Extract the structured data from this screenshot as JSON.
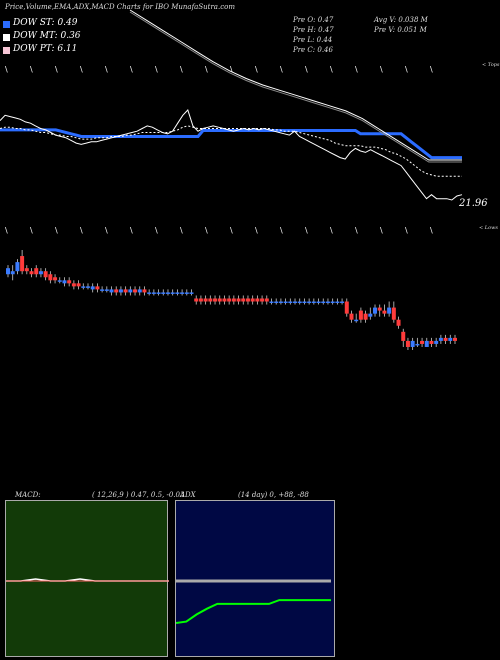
{
  "header": {
    "title": "Price,Volume,EMA,ADX,MACD Charts for IBO MunafaSutra.com"
  },
  "legend": [
    {
      "label": "DOW ST: 0.49",
      "color": "#2b6cff"
    },
    {
      "label": "DOW MT: 0.36",
      "color": "#ffffff"
    },
    {
      "label": "DOW PT: 6.11",
      "color": "#f7c6d6"
    }
  ],
  "info": {
    "col1": [
      "Pre  O: 0.47",
      "Pre  H: 0.47",
      "Pre  L: 0.44",
      "Pre  C: 0.46"
    ],
    "col2": [
      "Avg V: 0.038  M",
      "Pre  V: 0.051 M"
    ]
  },
  "price_label": "21.96",
  "edge_labels": {
    "top": "< Tops",
    "bottom": "< Lows"
  },
  "chart_data": [
    {
      "type": "line",
      "panel": "price-ema",
      "title": "Price,Volume,EMA,ADX,MACD Charts for IBO MunafaSutra.com",
      "x": [
        0,
        1,
        2,
        3,
        4,
        5,
        6,
        7,
        8,
        9,
        10,
        11,
        12,
        13,
        14,
        15,
        16,
        17,
        18,
        19,
        20,
        21,
        22,
        23,
        24,
        25,
        26,
        27,
        28,
        29,
        30,
        31,
        32,
        33,
        34,
        35,
        36,
        37,
        38,
        39,
        40,
        41,
        42,
        43,
        44,
        45,
        46,
        47,
        48,
        49,
        50,
        51,
        52,
        53,
        54,
        55,
        56,
        57,
        58,
        59,
        60,
        61,
        62,
        63,
        64,
        65,
        66,
        67,
        68,
        69,
        70,
        71,
        72,
        73,
        74,
        75,
        76,
        77,
        78,
        79,
        80,
        81,
        82,
        83,
        84,
        85,
        86,
        87,
        88,
        89,
        90,
        91
      ],
      "series": [
        {
          "name": "",
          "color": "#2b6cff",
          "values": [
            0.47,
            0.47,
            0.47,
            0.47,
            0.47,
            0.47,
            0.47,
            0.47,
            0.47,
            0.47,
            0.47,
            0.47,
            0.46,
            0.45,
            0.44,
            0.43,
            0.42,
            0.42,
            0.42,
            0.42,
            0.42,
            0.42,
            0.42,
            0.42,
            0.42,
            0.42,
            0.42,
            0.42,
            0.42,
            0.42,
            0.42,
            0.42,
            0.42,
            0.42,
            0.42,
            0.42,
            0.42,
            0.42,
            0.42,
            0.42,
            0.465,
            0.465,
            0.465,
            0.465,
            0.465,
            0.465,
            0.465,
            0.465,
            0.465,
            0.465,
            0.465,
            0.465,
            0.465,
            0.465,
            0.465,
            0.465,
            0.465,
            0.465,
            0.465,
            0.465,
            0.465,
            0.465,
            0.465,
            0.465,
            0.465,
            0.465,
            0.465,
            0.465,
            0.465,
            0.465,
            0.465,
            0.44,
            0.44,
            0.44,
            0.44,
            0.44,
            0.44,
            0.44,
            0.44,
            0.44,
            0.41,
            0.38,
            0.35,
            0.32,
            0.29,
            0.26,
            0.26,
            0.26,
            0.26,
            0.26,
            0.26,
            0.26
          ]
        },
        {
          "name": "",
          "color": "#ffffff",
          "values": [
            0.54,
            0.58,
            0.57,
            0.56,
            0.55,
            0.53,
            0.52,
            0.5,
            0.48,
            0.47,
            0.45,
            0.43,
            0.42,
            0.41,
            0.39,
            0.37,
            0.36,
            0.37,
            0.38,
            0.38,
            0.39,
            0.4,
            0.41,
            0.42,
            0.43,
            0.44,
            0.45,
            0.46,
            0.48,
            0.5,
            0.49,
            0.47,
            0.45,
            0.44,
            0.46,
            0.52,
            0.58,
            0.62,
            0.5,
            0.46,
            0.48,
            0.49,
            0.5,
            0.49,
            0.48,
            0.47,
            0.46,
            0.47,
            0.48,
            0.47,
            0.48,
            0.47,
            0.48,
            0.47,
            0.46,
            0.45,
            0.44,
            0.43,
            0.46,
            0.42,
            0.4,
            0.38,
            0.36,
            0.34,
            0.32,
            0.3,
            0.28,
            0.26,
            0.25,
            0.3,
            0.33,
            0.31,
            0.3,
            0.32,
            0.3,
            0.28,
            0.26,
            0.24,
            0.22,
            0.2,
            0.15,
            0.1,
            0.05,
            0.0,
            -0.05,
            -0.02,
            -0.05,
            -0.05,
            -0.05,
            -0.06,
            -0.03,
            -0.02
          ]
        },
        {
          "name": "",
          "color": "#ffffff",
          "dash": true,
          "values": [
            0.48,
            0.49,
            0.49,
            0.48,
            0.48,
            0.47,
            0.47,
            0.46,
            0.45,
            0.45,
            0.44,
            0.43,
            0.43,
            0.42,
            0.42,
            0.41,
            0.4,
            0.4,
            0.4,
            0.41,
            0.41,
            0.41,
            0.42,
            0.42,
            0.42,
            0.43,
            0.43,
            0.44,
            0.45,
            0.45,
            0.45,
            0.45,
            0.45,
            0.45,
            0.46,
            0.47,
            0.49,
            0.5,
            0.49,
            0.48,
            0.48,
            0.48,
            0.48,
            0.48,
            0.48,
            0.48,
            0.48,
            0.48,
            0.48,
            0.48,
            0.48,
            0.48,
            0.48,
            0.48,
            0.47,
            0.47,
            0.46,
            0.46,
            0.46,
            0.45,
            0.44,
            0.43,
            0.42,
            0.41,
            0.4,
            0.39,
            0.37,
            0.36,
            0.35,
            0.35,
            0.35,
            0.35,
            0.34,
            0.34,
            0.34,
            0.33,
            0.32,
            0.3,
            0.29,
            0.27,
            0.25,
            0.22,
            0.19,
            0.16,
            0.14,
            0.13,
            0.12,
            0.12,
            0.12,
            0.12,
            0.12,
            0.12
          ]
        }
      ]
    },
    {
      "type": "line",
      "panel": "top-line",
      "x": [
        0,
        1,
        2,
        3,
        4,
        5,
        6,
        7,
        8,
        9,
        10,
        11,
        12,
        13,
        14,
        15,
        16,
        17,
        18,
        19,
        20
      ],
      "series": [
        {
          "name": "",
          "color": "#ffffff",
          "values": [
            1.5,
            1.42,
            1.34,
            1.26,
            1.18,
            1.1,
            1.03,
            0.97,
            0.92,
            0.88,
            0.84,
            0.8,
            0.76,
            0.72,
            0.66,
            0.58,
            0.5,
            0.42,
            0.34,
            0.34,
            0.34
          ]
        }
      ]
    },
    {
      "type": "candlestick",
      "panel": "price-candles",
      "candles": [
        {
          "o": 0.46,
          "c": 0.48,
          "h": 0.49,
          "l": 0.45
        },
        {
          "o": 0.46,
          "c": 0.47,
          "h": 0.49,
          "l": 0.44
        },
        {
          "o": 0.47,
          "c": 0.5,
          "h": 0.51,
          "l": 0.46
        },
        {
          "o": 0.52,
          "c": 0.47,
          "h": 0.54,
          "l": 0.46
        },
        {
          "o": 0.48,
          "c": 0.47,
          "h": 0.49,
          "l": 0.46
        },
        {
          "o": 0.47,
          "c": 0.46,
          "h": 0.48,
          "l": 0.45
        },
        {
          "o": 0.48,
          "c": 0.46,
          "h": 0.49,
          "l": 0.45
        },
        {
          "o": 0.46,
          "c": 0.47,
          "h": 0.48,
          "l": 0.45
        },
        {
          "o": 0.47,
          "c": 0.45,
          "h": 0.48,
          "l": 0.44
        },
        {
          "o": 0.46,
          "c": 0.44,
          "h": 0.47,
          "l": 0.43
        },
        {
          "o": 0.45,
          "c": 0.44,
          "h": 0.46,
          "l": 0.43
        },
        {
          "o": 0.44,
          "c": 0.44,
          "h": 0.45,
          "l": 0.43
        },
        {
          "o": 0.43,
          "c": 0.44,
          "h": 0.45,
          "l": 0.42
        },
        {
          "o": 0.44,
          "c": 0.43,
          "h": 0.45,
          "l": 0.42
        },
        {
          "o": 0.43,
          "c": 0.42,
          "h": 0.44,
          "l": 0.41
        },
        {
          "o": 0.43,
          "c": 0.42,
          "h": 0.44,
          "l": 0.41
        },
        {
          "o": 0.42,
          "c": 0.42,
          "h": 0.43,
          "l": 0.41
        },
        {
          "o": 0.42,
          "c": 0.42,
          "h": 0.43,
          "l": 0.41
        },
        {
          "o": 0.41,
          "c": 0.42,
          "h": 0.43,
          "l": 0.4
        },
        {
          "o": 0.42,
          "c": 0.41,
          "h": 0.43,
          "l": 0.4
        },
        {
          "o": 0.41,
          "c": 0.41,
          "h": 0.42,
          "l": 0.4
        },
        {
          "o": 0.41,
          "c": 0.41,
          "h": 0.42,
          "l": 0.4
        },
        {
          "o": 0.4,
          "c": 0.41,
          "h": 0.42,
          "l": 0.39
        },
        {
          "o": 0.41,
          "c": 0.4,
          "h": 0.42,
          "l": 0.39
        },
        {
          "o": 0.4,
          "c": 0.41,
          "h": 0.42,
          "l": 0.39
        },
        {
          "o": 0.41,
          "c": 0.4,
          "h": 0.42,
          "l": 0.39
        },
        {
          "o": 0.4,
          "c": 0.41,
          "h": 0.42,
          "l": 0.39
        },
        {
          "o": 0.41,
          "c": 0.4,
          "h": 0.42,
          "l": 0.39
        },
        {
          "o": 0.4,
          "c": 0.41,
          "h": 0.42,
          "l": 0.39
        },
        {
          "o": 0.41,
          "c": 0.4,
          "h": 0.42,
          "l": 0.39
        },
        {
          "o": 0.4,
          "c": 0.4,
          "h": 0.41,
          "l": 0.39
        },
        {
          "o": 0.4,
          "c": 0.4,
          "h": 0.41,
          "l": 0.39
        },
        {
          "o": 0.4,
          "c": 0.4,
          "h": 0.41,
          "l": 0.39
        },
        {
          "o": 0.4,
          "c": 0.4,
          "h": 0.41,
          "l": 0.39
        },
        {
          "o": 0.4,
          "c": 0.4,
          "h": 0.41,
          "l": 0.39
        },
        {
          "o": 0.4,
          "c": 0.4,
          "h": 0.41,
          "l": 0.39
        },
        {
          "o": 0.4,
          "c": 0.4,
          "h": 0.41,
          "l": 0.39
        },
        {
          "o": 0.4,
          "c": 0.4,
          "h": 0.41,
          "l": 0.39
        },
        {
          "o": 0.4,
          "c": 0.4,
          "h": 0.41,
          "l": 0.39
        },
        {
          "o": 0.4,
          "c": 0.4,
          "h": 0.41,
          "l": 0.39
        },
        {
          "o": 0.38,
          "c": 0.37,
          "h": 0.39,
          "l": 0.36
        },
        {
          "o": 0.38,
          "c": 0.37,
          "h": 0.39,
          "l": 0.36
        },
        {
          "o": 0.38,
          "c": 0.37,
          "h": 0.39,
          "l": 0.36
        },
        {
          "o": 0.38,
          "c": 0.37,
          "h": 0.39,
          "l": 0.36
        },
        {
          "o": 0.38,
          "c": 0.37,
          "h": 0.39,
          "l": 0.36
        },
        {
          "o": 0.38,
          "c": 0.37,
          "h": 0.39,
          "l": 0.36
        },
        {
          "o": 0.38,
          "c": 0.37,
          "h": 0.39,
          "l": 0.36
        },
        {
          "o": 0.38,
          "c": 0.37,
          "h": 0.39,
          "l": 0.36
        },
        {
          "o": 0.38,
          "c": 0.37,
          "h": 0.39,
          "l": 0.36
        },
        {
          "o": 0.38,
          "c": 0.37,
          "h": 0.39,
          "l": 0.36
        },
        {
          "o": 0.38,
          "c": 0.37,
          "h": 0.39,
          "l": 0.36
        },
        {
          "o": 0.38,
          "c": 0.37,
          "h": 0.39,
          "l": 0.36
        },
        {
          "o": 0.38,
          "c": 0.37,
          "h": 0.39,
          "l": 0.36
        },
        {
          "o": 0.38,
          "c": 0.37,
          "h": 0.39,
          "l": 0.36
        },
        {
          "o": 0.38,
          "c": 0.37,
          "h": 0.39,
          "l": 0.36
        },
        {
          "o": 0.38,
          "c": 0.37,
          "h": 0.39,
          "l": 0.36
        },
        {
          "o": 0.37,
          "c": 0.37,
          "h": 0.38,
          "l": 0.36
        },
        {
          "o": 0.37,
          "c": 0.37,
          "h": 0.38,
          "l": 0.36
        },
        {
          "o": 0.37,
          "c": 0.37,
          "h": 0.38,
          "l": 0.36
        },
        {
          "o": 0.37,
          "c": 0.37,
          "h": 0.38,
          "l": 0.36
        },
        {
          "o": 0.37,
          "c": 0.37,
          "h": 0.38,
          "l": 0.36
        },
        {
          "o": 0.37,
          "c": 0.37,
          "h": 0.38,
          "l": 0.36
        },
        {
          "o": 0.37,
          "c": 0.37,
          "h": 0.38,
          "l": 0.36
        },
        {
          "o": 0.37,
          "c": 0.37,
          "h": 0.38,
          "l": 0.36
        },
        {
          "o": 0.37,
          "c": 0.37,
          "h": 0.38,
          "l": 0.36
        },
        {
          "o": 0.37,
          "c": 0.37,
          "h": 0.38,
          "l": 0.36
        },
        {
          "o": 0.37,
          "c": 0.37,
          "h": 0.38,
          "l": 0.36
        },
        {
          "o": 0.37,
          "c": 0.37,
          "h": 0.38,
          "l": 0.36
        },
        {
          "o": 0.37,
          "c": 0.37,
          "h": 0.38,
          "l": 0.36
        },
        {
          "o": 0.37,
          "c": 0.37,
          "h": 0.38,
          "l": 0.36
        },
        {
          "o": 0.37,
          "c": 0.37,
          "h": 0.38,
          "l": 0.36
        },
        {
          "o": 0.37,
          "c": 0.37,
          "h": 0.38,
          "l": 0.36
        },
        {
          "o": 0.37,
          "c": 0.33,
          "h": 0.38,
          "l": 0.32
        },
        {
          "o": 0.33,
          "c": 0.31,
          "h": 0.34,
          "l": 0.3
        },
        {
          "o": 0.31,
          "c": 0.31,
          "h": 0.33,
          "l": 0.3
        },
        {
          "o": 0.34,
          "c": 0.31,
          "h": 0.35,
          "l": 0.3
        },
        {
          "o": 0.33,
          "c": 0.31,
          "h": 0.34,
          "l": 0.3
        },
        {
          "o": 0.32,
          "c": 0.33,
          "h": 0.35,
          "l": 0.31
        },
        {
          "o": 0.33,
          "c": 0.35,
          "h": 0.36,
          "l": 0.32
        },
        {
          "o": 0.35,
          "c": 0.34,
          "h": 0.36,
          "l": 0.32
        },
        {
          "o": 0.34,
          "c": 0.33,
          "h": 0.36,
          "l": 0.32
        },
        {
          "o": 0.33,
          "c": 0.35,
          "h": 0.37,
          "l": 0.32
        },
        {
          "o": 0.35,
          "c": 0.31,
          "h": 0.37,
          "l": 0.3
        },
        {
          "o": 0.31,
          "c": 0.29,
          "h": 0.32,
          "l": 0.28
        },
        {
          "o": 0.27,
          "c": 0.24,
          "h": 0.28,
          "l": 0.22
        },
        {
          "o": 0.24,
          "c": 0.22,
          "h": 0.25,
          "l": 0.21
        },
        {
          "o": 0.22,
          "c": 0.24,
          "h": 0.25,
          "l": 0.21
        },
        {
          "o": 0.23,
          "c": 0.23,
          "h": 0.25,
          "l": 0.22
        },
        {
          "o": 0.24,
          "c": 0.23,
          "h": 0.25,
          "l": 0.22
        },
        {
          "o": 0.22,
          "c": 0.24,
          "h": 0.25,
          "l": 0.22
        },
        {
          "o": 0.24,
          "c": 0.23,
          "h": 0.25,
          "l": 0.22
        },
        {
          "o": 0.23,
          "c": 0.24,
          "h": 0.25,
          "l": 0.22
        },
        {
          "o": 0.24,
          "c": 0.25,
          "h": 0.26,
          "l": 0.23
        },
        {
          "o": 0.25,
          "c": 0.24,
          "h": 0.26,
          "l": 0.23
        },
        {
          "o": 0.24,
          "c": 0.25,
          "h": 0.26,
          "l": 0.23
        },
        {
          "o": 0.25,
          "c": 0.24,
          "h": 0.26,
          "l": 0.23
        }
      ],
      "colors": {
        "up": "#3a7bff",
        "down": "#ff3b3b"
      }
    },
    {
      "type": "line",
      "panel": "macd",
      "title": "MACD:",
      "params": "( 12,26,9 ) 0.47,  0.5,  -0.03",
      "background": "#123a08",
      "series": [
        {
          "name": "",
          "color": "#ffffff",
          "values": [
            0.0,
            0.0,
            0.01,
            0.0,
            0.0,
            0.01,
            0.0,
            0.0,
            0.0,
            0.0,
            0.0,
            0.0
          ]
        },
        {
          "name": "",
          "color": "#ff6666",
          "values": [
            0.0,
            0.0,
            0.0,
            0.0,
            0.0,
            0.0,
            0.0,
            0.0,
            0.0,
            0.0,
            0.0,
            0.0
          ]
        }
      ]
    },
    {
      "type": "line",
      "panel": "adx",
      "title": "ADX",
      "params": "(14  day) 0,  +88,  -88",
      "background": "#000844",
      "series": [
        {
          "name": "",
          "color": "#aaaaaa",
          "values": [
            88,
            88,
            88,
            88,
            88,
            88,
            88,
            88,
            88,
            88,
            88,
            88,
            88,
            88,
            88,
            88
          ]
        },
        {
          "name": "",
          "color": "#00ff00",
          "values": [
            0,
            3,
            18,
            30,
            40,
            40,
            40,
            40,
            40,
            40,
            48,
            48,
            48,
            48,
            48,
            48
          ]
        }
      ]
    }
  ]
}
